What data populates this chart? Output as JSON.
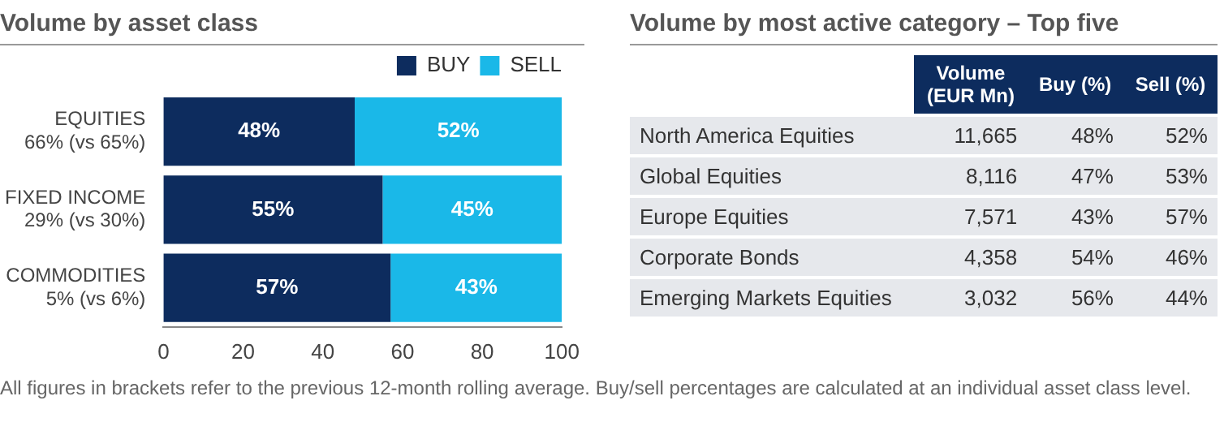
{
  "chart_data": [
    {
      "type": "bar",
      "title": "Volume by asset class",
      "orientation": "horizontal",
      "stacked": true,
      "categories": [
        "EQUITIES\n66% (vs 65%)",
        "FIXED INCOME\n29% (vs 30%)",
        "COMMODITIES\n5% (vs 6%)"
      ],
      "series": [
        {
          "name": "BUY",
          "color": "#0d2c5e",
          "values": [
            48,
            55,
            57
          ],
          "value_labels": [
            "48%",
            "55%",
            "57%"
          ]
        },
        {
          "name": "SELL",
          "color": "#1ab8e8",
          "values": [
            52,
            45,
            43
          ],
          "value_labels": [
            "52%",
            "45%",
            "43%"
          ]
        }
      ],
      "xlim": [
        0,
        100
      ],
      "xticks": [
        0,
        20,
        40,
        60,
        80,
        100
      ],
      "grid": false,
      "legend": "top right",
      "annotations": [
        "All figures in brackets refer to the previous 12-month rolling average. Buy/sell percentages are calculated at an individual asset class level."
      ]
    },
    {
      "type": "other",
      "title": "Volume by most active category – Top five",
      "categories": [
        "North America Equities",
        "Global Equities",
        "Europe Equities",
        "Corporate Bonds",
        "Emerging Markets Equities"
      ],
      "series": [
        {
          "name": "Volume\n(EUR Mn)",
          "values": [
            11665,
            8116,
            7571,
            4358,
            3032
          ],
          "value_labels": [
            "11,665",
            "8,116",
            "7,571",
            "4,358",
            "3,032"
          ]
        },
        {
          "name": "Buy (%)",
          "values": [
            48,
            47,
            43,
            54,
            56
          ],
          "value_labels": [
            "48%",
            "47%",
            "43%",
            "54%",
            "56%"
          ]
        },
        {
          "name": "Sell (%)",
          "values": [
            52,
            53,
            57,
            46,
            44
          ],
          "value_labels": [
            "52%",
            "53%",
            "57%",
            "46%",
            "44%"
          ]
        }
      ]
    }
  ]
}
